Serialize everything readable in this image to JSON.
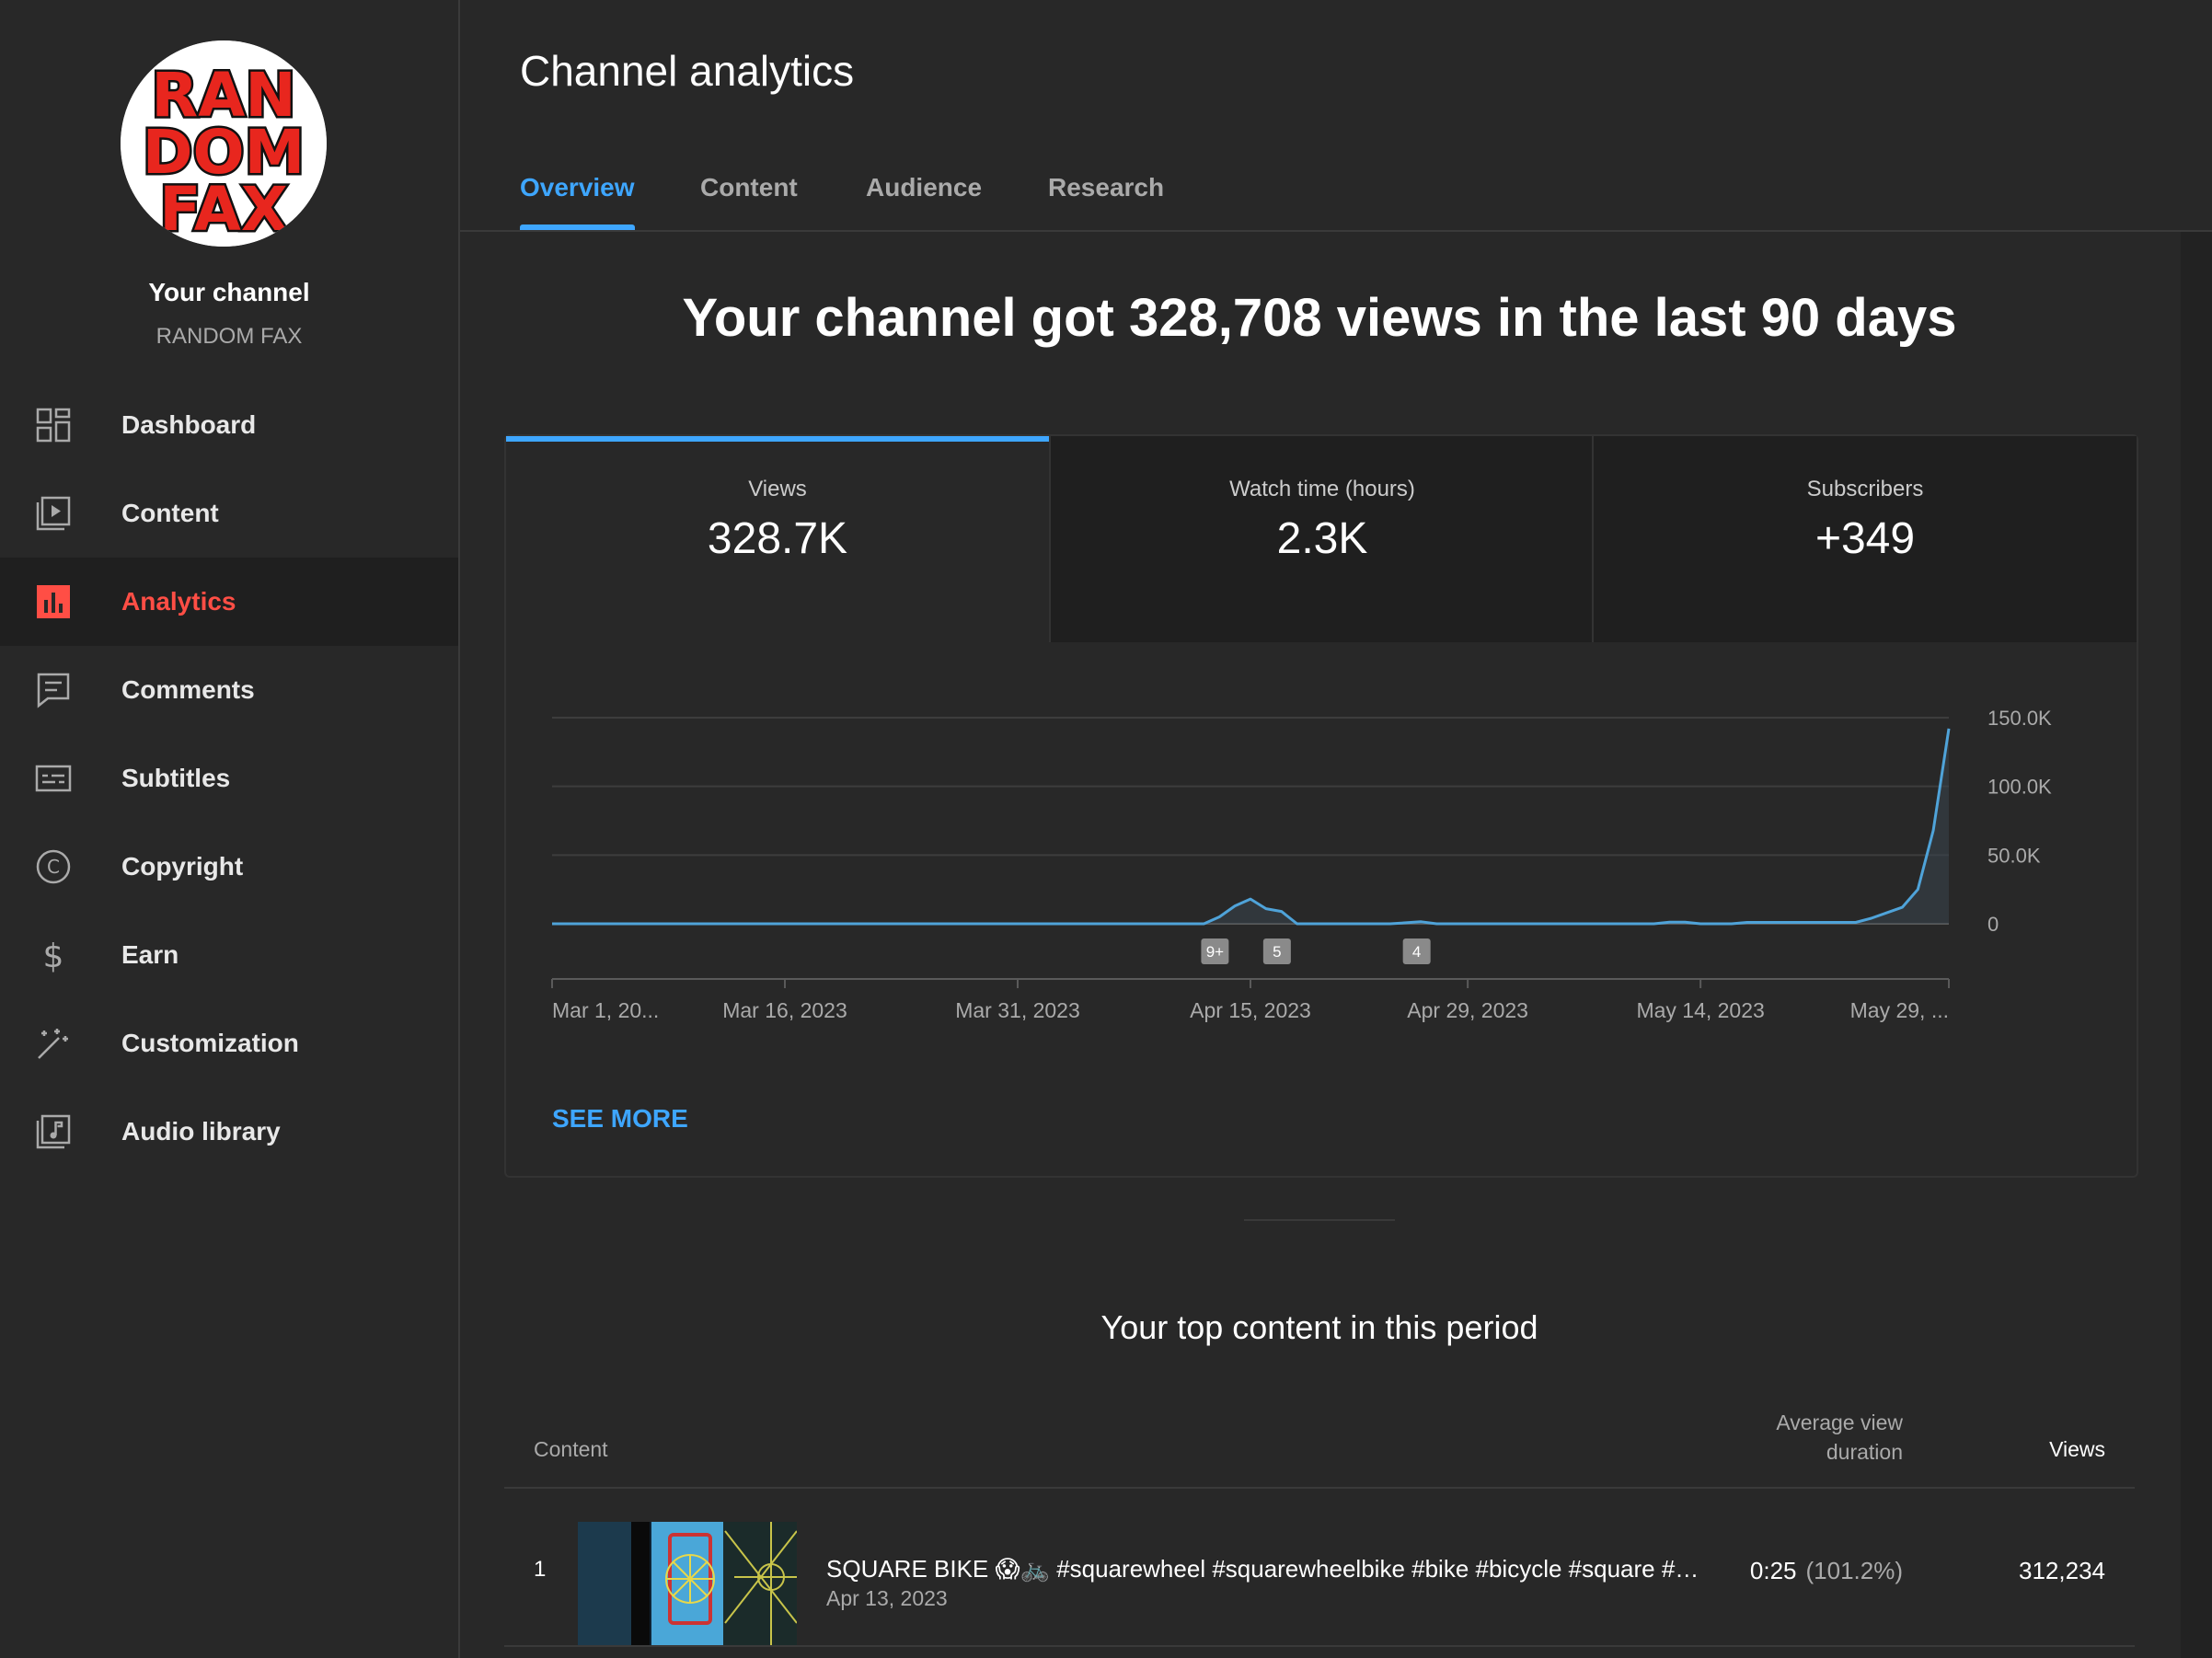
{
  "sidebar": {
    "avatar_text_lines": [
      "RAN",
      "DOM",
      "FAX"
    ],
    "your_channel": "Your channel",
    "channel_name": "RANDOM FAX",
    "items": [
      {
        "label": "Dashboard",
        "icon": "dashboard-icon"
      },
      {
        "label": "Content",
        "icon": "content-icon"
      },
      {
        "label": "Analytics",
        "icon": "analytics-icon",
        "active": true
      },
      {
        "label": "Comments",
        "icon": "comments-icon"
      },
      {
        "label": "Subtitles",
        "icon": "subtitles-icon"
      },
      {
        "label": "Copyright",
        "icon": "copyright-icon"
      },
      {
        "label": "Earn",
        "icon": "earn-icon"
      },
      {
        "label": "Customization",
        "icon": "customization-icon"
      },
      {
        "label": "Audio library",
        "icon": "audio-library-icon"
      }
    ]
  },
  "header": {
    "title": "Channel analytics",
    "tabs": [
      {
        "label": "Overview",
        "active": true
      },
      {
        "label": "Content"
      },
      {
        "label": "Audience"
      },
      {
        "label": "Research"
      }
    ]
  },
  "main": {
    "headline": "Your channel got 328,708 views in the last 90 days",
    "metrics": [
      {
        "label": "Views",
        "value": "328.7K",
        "active": true
      },
      {
        "label": "Watch time (hours)",
        "value": "2.3K"
      },
      {
        "label": "Subscribers",
        "value": "+349"
      }
    ],
    "see_more": "SEE MORE",
    "top_content_title": "Your top content in this period",
    "table": {
      "headers": {
        "content": "Content",
        "avd_line1": "Average view",
        "avd_line2": "duration",
        "views": "Views"
      },
      "rows": [
        {
          "rank": "1",
          "title": "SQUARE BIKE 😱🚲 #squarewheel #squarewheelbike #bike #bicycle #square #…",
          "date": "Apr 13, 2023",
          "avd": "0:25",
          "avd_pct": "(101.2%)",
          "views": "312,234"
        }
      ]
    }
  },
  "colors": {
    "accent": "#3ea6ff",
    "active_nav": "#ff4e45",
    "background": "#282828",
    "line": "#4fa3d9"
  },
  "chart_data": {
    "type": "line",
    "metric": "Views",
    "x_tick_labels": [
      "Mar 1, 20...",
      "Mar 16, 2023",
      "Mar 31, 2023",
      "Apr 15, 2023",
      "Apr 29, 2023",
      "May 14, 2023",
      "May 29, ..."
    ],
    "x_tick_days": [
      0,
      15,
      30,
      45,
      59,
      74,
      89
    ],
    "y_tick_labels": [
      "150.0K",
      "100.0K",
      "50.0K",
      "0"
    ],
    "y_ticks": [
      150000,
      100000,
      50000,
      0
    ],
    "ylim": [
      0,
      150000
    ],
    "xlim": [
      0,
      89
    ],
    "grid": true,
    "points": [
      [
        0,
        0
      ],
      [
        42,
        0
      ],
      [
        43,
        5000
      ],
      [
        44,
        13000
      ],
      [
        45,
        18000
      ],
      [
        46,
        11000
      ],
      [
        47,
        9000
      ],
      [
        48,
        0
      ],
      [
        54,
        0
      ],
      [
        56,
        1500
      ],
      [
        57,
        0
      ],
      [
        71,
        0
      ],
      [
        72,
        1200
      ],
      [
        73,
        1200
      ],
      [
        74,
        0
      ],
      [
        76,
        0
      ],
      [
        77,
        1000
      ],
      [
        84,
        1000
      ],
      [
        85,
        4000
      ],
      [
        86,
        8000
      ],
      [
        87,
        12000
      ],
      [
        88,
        25000
      ],
      [
        89,
        68000
      ],
      [
        90,
        142000
      ]
    ],
    "markers": [
      {
        "day": 42,
        "label": "9+"
      },
      {
        "day": 46,
        "label": "5"
      },
      {
        "day": 55,
        "label": "4"
      }
    ]
  }
}
